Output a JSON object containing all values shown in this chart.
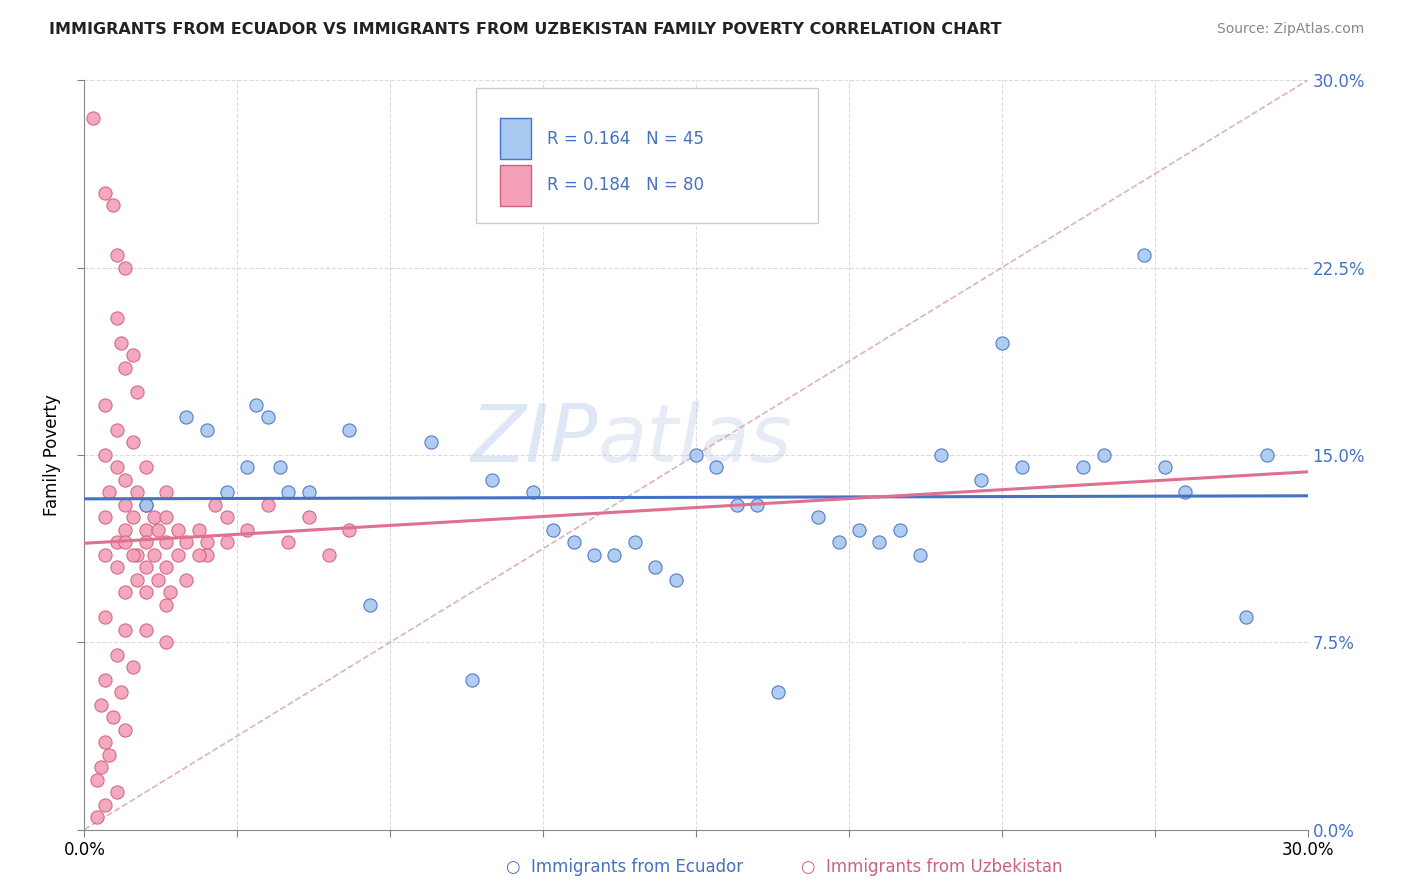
{
  "title": "IMMIGRANTS FROM ECUADOR VS IMMIGRANTS FROM UZBEKISTAN FAMILY POVERTY CORRELATION CHART",
  "source": "Source: ZipAtlas.com",
  "ylabel": "Family Poverty",
  "ytick_values": [
    0.0,
    7.5,
    15.0,
    22.5,
    30.0
  ],
  "xtick_values": [
    0.0,
    3.75,
    7.5,
    11.25,
    15.0,
    18.75,
    22.5,
    26.25,
    30.0
  ],
  "xlim": [
    0.0,
    30.0
  ],
  "ylim": [
    0.0,
    30.0
  ],
  "color_ecuador_fill": "#a8c8f0",
  "color_ecuador_edge": "#4472c4",
  "color_uzbekistan_fill": "#f4a0b8",
  "color_uzbekistan_edge": "#d06080",
  "color_ecuador_line": "#4472c4",
  "color_uzbekistan_line": "#e07090",
  "color_diagonal": "#d8a0a0",
  "watermark_zip": "ZIP",
  "watermark_atlas": "atlas",
  "ecuador_points": [
    [
      1.5,
      13.0
    ],
    [
      2.5,
      16.5
    ],
    [
      3.0,
      16.0
    ],
    [
      3.5,
      13.5
    ],
    [
      4.2,
      17.0
    ],
    [
      4.5,
      16.5
    ],
    [
      4.8,
      14.5
    ],
    [
      5.5,
      13.5
    ],
    [
      6.5,
      16.0
    ],
    [
      7.0,
      9.0
    ],
    [
      4.0,
      14.5
    ],
    [
      5.0,
      13.5
    ],
    [
      8.5,
      15.5
    ],
    [
      9.5,
      6.0
    ],
    [
      10.0,
      14.0
    ],
    [
      11.0,
      13.5
    ],
    [
      11.5,
      12.0
    ],
    [
      12.0,
      11.5
    ],
    [
      12.5,
      11.0
    ],
    [
      13.0,
      11.0
    ],
    [
      14.0,
      10.5
    ],
    [
      15.0,
      15.0
    ],
    [
      15.5,
      14.5
    ],
    [
      16.0,
      13.0
    ],
    [
      17.0,
      5.5
    ],
    [
      18.0,
      12.5
    ],
    [
      18.5,
      11.5
    ],
    [
      19.0,
      12.0
    ],
    [
      19.5,
      11.5
    ],
    [
      20.0,
      12.0
    ],
    [
      21.0,
      15.0
    ],
    [
      22.0,
      14.0
    ],
    [
      22.5,
      19.5
    ],
    [
      23.0,
      14.5
    ],
    [
      24.5,
      14.5
    ],
    [
      26.0,
      23.0
    ],
    [
      26.5,
      14.5
    ],
    [
      27.0,
      13.5
    ],
    [
      28.5,
      8.5
    ],
    [
      29.0,
      15.0
    ],
    [
      13.5,
      11.5
    ],
    [
      14.5,
      10.0
    ],
    [
      16.5,
      13.0
    ],
    [
      20.5,
      11.0
    ],
    [
      25.0,
      15.0
    ]
  ],
  "uzbekistan_points": [
    [
      0.2,
      28.5
    ],
    [
      0.5,
      25.5
    ],
    [
      0.7,
      25.0
    ],
    [
      0.8,
      23.0
    ],
    [
      1.0,
      22.5
    ],
    [
      0.8,
      20.5
    ],
    [
      0.9,
      19.5
    ],
    [
      1.0,
      18.5
    ],
    [
      1.2,
      19.0
    ],
    [
      1.3,
      17.5
    ],
    [
      0.5,
      17.0
    ],
    [
      0.8,
      16.0
    ],
    [
      1.2,
      15.5
    ],
    [
      0.5,
      15.0
    ],
    [
      0.8,
      14.5
    ],
    [
      1.0,
      14.0
    ],
    [
      1.5,
      14.5
    ],
    [
      0.6,
      13.5
    ],
    [
      1.0,
      13.0
    ],
    [
      1.3,
      13.5
    ],
    [
      1.5,
      13.0
    ],
    [
      1.7,
      12.5
    ],
    [
      2.0,
      13.5
    ],
    [
      0.5,
      12.5
    ],
    [
      1.0,
      12.0
    ],
    [
      1.2,
      12.5
    ],
    [
      1.5,
      12.0
    ],
    [
      1.8,
      12.0
    ],
    [
      2.0,
      12.5
    ],
    [
      2.3,
      12.0
    ],
    [
      0.8,
      11.5
    ],
    [
      1.0,
      11.5
    ],
    [
      1.3,
      11.0
    ],
    [
      1.5,
      11.5
    ],
    [
      1.7,
      11.0
    ],
    [
      2.0,
      11.5
    ],
    [
      2.3,
      11.0
    ],
    [
      2.5,
      11.5
    ],
    [
      2.8,
      12.0
    ],
    [
      3.0,
      11.5
    ],
    [
      0.5,
      11.0
    ],
    [
      0.8,
      10.5
    ],
    [
      1.2,
      11.0
    ],
    [
      1.5,
      10.5
    ],
    [
      1.8,
      10.0
    ],
    [
      2.0,
      10.5
    ],
    [
      2.5,
      10.0
    ],
    [
      3.0,
      11.0
    ],
    [
      3.5,
      11.5
    ],
    [
      4.0,
      12.0
    ],
    [
      1.0,
      9.5
    ],
    [
      1.5,
      9.5
    ],
    [
      2.0,
      9.0
    ],
    [
      0.5,
      8.5
    ],
    [
      1.0,
      8.0
    ],
    [
      1.5,
      8.0
    ],
    [
      2.0,
      7.5
    ],
    [
      0.8,
      7.0
    ],
    [
      1.2,
      6.5
    ],
    [
      0.5,
      6.0
    ],
    [
      0.9,
      5.5
    ],
    [
      0.4,
      5.0
    ],
    [
      0.7,
      4.5
    ],
    [
      1.0,
      4.0
    ],
    [
      0.5,
      3.5
    ],
    [
      0.6,
      3.0
    ],
    [
      0.4,
      2.5
    ],
    [
      0.3,
      2.0
    ],
    [
      0.8,
      1.5
    ],
    [
      0.5,
      1.0
    ],
    [
      0.3,
      0.5
    ],
    [
      1.3,
      10.0
    ],
    [
      2.1,
      9.5
    ],
    [
      3.5,
      12.5
    ],
    [
      5.0,
      11.5
    ],
    [
      4.5,
      13.0
    ],
    [
      5.5,
      12.5
    ],
    [
      6.0,
      11.0
    ],
    [
      6.5,
      12.0
    ],
    [
      2.8,
      11.0
    ],
    [
      3.2,
      13.0
    ]
  ]
}
